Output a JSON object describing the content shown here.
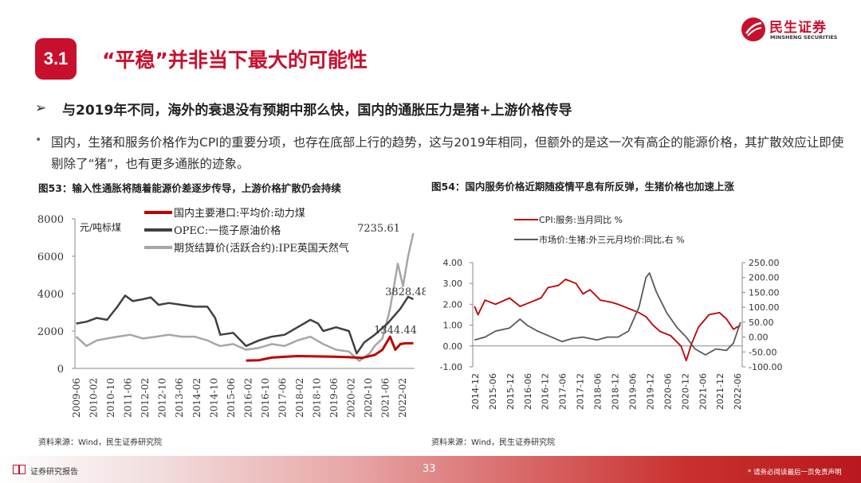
{
  "brand": {
    "name_cn": "民生证券",
    "name_en": "MINSHENG SECURITIES",
    "color": "#c8102e"
  },
  "section": {
    "number": "3.1",
    "title": "“平稳”并非当下最大的可能性"
  },
  "subheading": {
    "arrow": "➢",
    "text": "与2019年不同，海外的衰退没有预期中那么快，国内的通胀压力是猪+上游价格传导"
  },
  "paragraph": {
    "dot": "•",
    "text": "国内，生猪和服务价格作为CPI的重要分项，也存在底部上行的趋势，这与2019年相同，但额外的是这一次有高企的能源价格，其扩散效应让即使剔除了“猪”，也有更多通胀的迹象。"
  },
  "figure53": {
    "caption": "图53：输入性通胀将随着能源价差逐步传导，上游价格扩散仍会持续",
    "source": "资料来源：Wind，民生证券研究院",
    "unit_label": "元/吨标煤",
    "annotations": [
      "7235.61",
      "3828.48",
      "1344.44"
    ],
    "yticks": [
      "8000",
      "6000",
      "4000",
      "2000",
      "0"
    ],
    "xticks": [
      "2009-06",
      "2010-02",
      "2010-10",
      "2011-06",
      "2012-02",
      "2012-10",
      "2013-06",
      "2014-02",
      "2014-10",
      "2015-06",
      "2016-02",
      "2016-10",
      "2017-06",
      "2018-02",
      "2018-10",
      "2019-06",
      "2020-02",
      "2020-10",
      "2021-06",
      "2022-02"
    ]
  },
  "figure54": {
    "caption": "图54：国内服务价格近期随疫情平息有所反弹，生猪价格也加速上涨",
    "source": "资料来源：Wind，民生证券研究院",
    "yticks_left": [
      "4.00",
      "3.00",
      "2.00",
      "1.00",
      "0.00",
      "-1.00"
    ],
    "yticks_right": [
      "250.00",
      "200.00",
      "150.00",
      "100.00",
      "50.00",
      "0.00",
      "-50.00",
      "-100.00"
    ],
    "xticks": [
      "2014-12",
      "2015-06",
      "2015-12",
      "2016-06",
      "2016-12",
      "2017-06",
      "2017-12",
      "2018-06",
      "2018-12",
      "2019-06",
      "2019-12",
      "2020-06",
      "2020-12",
      "2021-06",
      "2021-12",
      "2022-06"
    ]
  },
  "chart_data": [
    {
      "type": "line",
      "ylim": [
        0,
        8000
      ],
      "series": [
        {
          "name": "国内主要港口:平均价:动力煤",
          "color": "#c00000",
          "x": [
            2016.0,
            2016.5,
            2017.0,
            2017.5,
            2018.0,
            2018.5,
            2019.0,
            2019.5,
            2020.0,
            2020.5,
            2021.0,
            2021.3,
            2021.6,
            2021.8,
            2022.0,
            2022.2,
            2022.5
          ],
          "values": [
            420,
            440,
            580,
            620,
            660,
            650,
            640,
            620,
            600,
            560,
            720,
            1000,
            1700,
            1000,
            1300,
            1344,
            1344
          ]
        },
        {
          "name": "OPEC:一揽子原油价格",
          "color": "#404040",
          "x": [
            2009.4,
            2009.8,
            2010.2,
            2010.6,
            2011.0,
            2011.3,
            2011.6,
            2012.0,
            2012.3,
            2012.6,
            2013.0,
            2013.5,
            2014.0,
            2014.5,
            2014.8,
            2015.0,
            2015.5,
            2016.0,
            2016.5,
            2017.0,
            2017.5,
            2018.0,
            2018.5,
            2018.8,
            2019.0,
            2019.5,
            2020.0,
            2020.3,
            2020.6,
            2021.0,
            2021.5,
            2022.0,
            2022.3,
            2022.5
          ],
          "values": [
            2400,
            2500,
            2700,
            2600,
            3300,
            3900,
            3600,
            3700,
            3800,
            3400,
            3500,
            3400,
            3300,
            3300,
            2700,
            1800,
            1900,
            1200,
            1500,
            1700,
            1800,
            2200,
            2600,
            2400,
            2000,
            2200,
            2000,
            800,
            1400,
            1800,
            2400,
            3200,
            3828,
            3700
          ]
        },
        {
          "name": "期货结算价(活跃合约):IPE英国天然气",
          "color": "#a6a6a6",
          "x": [
            2009.4,
            2009.8,
            2010.2,
            2010.6,
            2011.0,
            2011.5,
            2012.0,
            2012.5,
            2013.0,
            2013.5,
            2014.0,
            2014.5,
            2014.8,
            2015.0,
            2015.5,
            2016.0,
            2016.5,
            2017.0,
            2017.5,
            2018.0,
            2018.5,
            2019.0,
            2019.5,
            2020.0,
            2020.4,
            2020.8,
            2021.0,
            2021.3,
            2021.6,
            2021.9,
            2022.1,
            2022.3,
            2022.5
          ],
          "values": [
            1700,
            1200,
            1500,
            1600,
            1700,
            1800,
            1600,
            1700,
            1800,
            1700,
            1700,
            1500,
            1300,
            1200,
            1300,
            1000,
            1100,
            1300,
            1200,
            1500,
            1700,
            1300,
            1000,
            900,
            400,
            800,
            1200,
            1600,
            3200,
            5600,
            4400,
            6000,
            7235
          ]
        }
      ]
    },
    {
      "type": "line",
      "ylim_left": [
        -1,
        4
      ],
      "ylim_right": [
        -100,
        250
      ],
      "series": [
        {
          "name": "CPI:服务:当月同比 %",
          "color": "#c00000",
          "axis": "left",
          "x": [
            2014.9,
            2015.0,
            2015.2,
            2015.5,
            2015.9,
            2016.2,
            2016.5,
            2016.8,
            2017.0,
            2017.3,
            2017.5,
            2017.8,
            2018.0,
            2018.2,
            2018.5,
            2018.8,
            2019.0,
            2019.3,
            2019.6,
            2019.8,
            2020.0,
            2020.2,
            2020.5,
            2020.8,
            2020.95,
            2021.1,
            2021.3,
            2021.6,
            2021.9,
            2022.1,
            2022.3,
            2022.5
          ],
          "values": [
            1.9,
            1.5,
            2.2,
            2.0,
            2.3,
            1.9,
            2.1,
            2.3,
            2.8,
            2.9,
            3.2,
            3.0,
            2.5,
            2.7,
            2.2,
            2.1,
            2.0,
            1.8,
            1.6,
            1.4,
            1.0,
            0.7,
            0.5,
            0.0,
            -0.7,
            0.1,
            0.9,
            1.5,
            1.6,
            1.3,
            0.8,
            1.0
          ]
        },
        {
          "name": "市场价:生猪:外三元月均价:同比,右 %",
          "color": "#595959",
          "axis": "right",
          "x": [
            2014.9,
            2015.2,
            2015.5,
            2015.9,
            2016.2,
            2016.4,
            2016.7,
            2017.0,
            2017.4,
            2017.7,
            2018.0,
            2018.4,
            2018.7,
            2019.0,
            2019.3,
            2019.6,
            2019.8,
            2019.9,
            2020.1,
            2020.4,
            2020.7,
            2020.95,
            2021.2,
            2021.5,
            2021.8,
            2022.1,
            2022.3,
            2022.5
          ],
          "values": [
            -10,
            0,
            20,
            30,
            60,
            40,
            20,
            5,
            -15,
            -5,
            0,
            -10,
            0,
            0,
            20,
            100,
            200,
            215,
            150,
            80,
            30,
            0,
            -40,
            -60,
            -40,
            -45,
            -20,
            50
          ]
        }
      ]
    }
  ]
}
